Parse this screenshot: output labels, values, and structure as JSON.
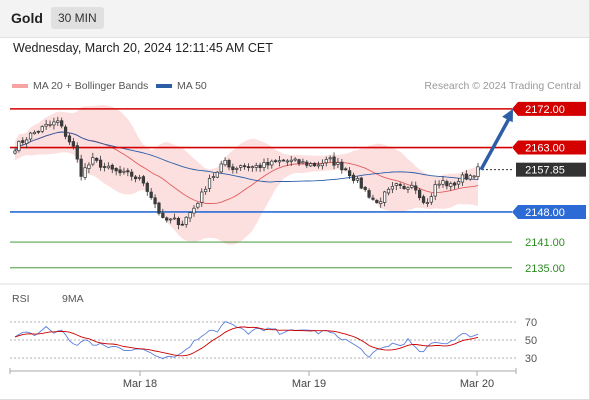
{
  "header": {
    "instrument": "Gold",
    "timeframe": "30 MIN"
  },
  "datetime": "Wednesday, March 20, 2024 12:11:45 AM CET",
  "legend": {
    "ma20_bb": "MA 20 + Bollinger Bands",
    "ma50": "MA 50"
  },
  "credit": "Research © 2024 Trading Central",
  "rsi_legend": {
    "rsi": "RSI",
    "ma": "9MA"
  },
  "colors": {
    "bb": "#f5a3a3",
    "ma20": "#e35d5d",
    "ma50": "#2c5ea8",
    "resistance": "#d40000",
    "support": "#2c6bd6",
    "target": "#2e8b22",
    "bull": "#3d3d3d",
    "bear": "#ffffff",
    "arrow": "#2c5ea8",
    "rsi": "#5b7fdd",
    "rsi_ma": "#cc0000",
    "last": "#333333"
  },
  "chart_data": [
    {
      "type": "candlestick",
      "price_range": [
        2131.7,
        2175
      ],
      "dates": [
        "Mar 18",
        "Mar 19",
        "Mar 20"
      ],
      "levels": [
        {
          "value": 2172.0,
          "label": "2172.00",
          "kind": "resistance"
        },
        {
          "value": 2163.0,
          "label": "2163.00",
          "kind": "resistance"
        },
        {
          "value": 2157.85,
          "label": "2157.85",
          "kind": "last"
        },
        {
          "value": 2148.0,
          "label": "2148.00",
          "kind": "support"
        },
        {
          "value": 2141.0,
          "label": "2141.00",
          "kind": "target"
        },
        {
          "value": 2135.0,
          "label": "2135.00",
          "kind": "target"
        }
      ],
      "projection": {
        "from": 2157.85,
        "to": 2172.0
      },
      "close_anchors": [
        [
          0,
          2163
        ],
        [
          4,
          2166
        ],
        [
          8,
          2168
        ],
        [
          11,
          2169
        ],
        [
          13,
          2166
        ],
        [
          15,
          2163
        ],
        [
          17,
          2157
        ],
        [
          20,
          2160
        ],
        [
          24,
          2158
        ],
        [
          27,
          2157
        ],
        [
          30,
          2156.5
        ],
        [
          33,
          2155
        ],
        [
          36,
          2150
        ],
        [
          38,
          2146
        ],
        [
          41,
          2146
        ],
        [
          43,
          2145.5
        ],
        [
          46,
          2149
        ],
        [
          48,
          2152
        ],
        [
          50,
          2156
        ],
        [
          52,
          2157
        ],
        [
          54,
          2160
        ],
        [
          56,
          2158
        ],
        [
          58,
          2159
        ],
        [
          61,
          2158.5
        ],
        [
          65,
          2159
        ],
        [
          69,
          2160
        ],
        [
          73,
          2159.5
        ],
        [
          77,
          2159
        ],
        [
          81,
          2160
        ],
        [
          85,
          2158
        ],
        [
          88,
          2155
        ],
        [
          90,
          2153
        ],
        [
          93,
          2150
        ],
        [
          95,
          2152
        ],
        [
          98,
          2154
        ],
        [
          100,
          2153
        ],
        [
          102,
          2155
        ],
        [
          104,
          2152
        ],
        [
          106,
          2150
        ],
        [
          108,
          2154
        ],
        [
          110,
          2155
        ],
        [
          112,
          2154
        ],
        [
          115,
          2156
        ],
        [
          117,
          2156.5
        ],
        [
          119,
          2157.85
        ]
      ]
    },
    {
      "type": "line",
      "name": "RSI",
      "yticks": [
        30,
        50,
        70
      ],
      "ylim": [
        20,
        80
      ],
      "rsi_anchors": [
        [
          0,
          52
        ],
        [
          3,
          60
        ],
        [
          5,
          55
        ],
        [
          8,
          64
        ],
        [
          10,
          58
        ],
        [
          12,
          62
        ],
        [
          14,
          48
        ],
        [
          16,
          45
        ],
        [
          18,
          50
        ],
        [
          20,
          44
        ],
        [
          22,
          46
        ],
        [
          24,
          41
        ],
        [
          26,
          44
        ],
        [
          28,
          40
        ],
        [
          30,
          38
        ],
        [
          33,
          40
        ],
        [
          36,
          34
        ],
        [
          38,
          31
        ],
        [
          40,
          32
        ],
        [
          42,
          33
        ],
        [
          44,
          40
        ],
        [
          46,
          48
        ],
        [
          48,
          55
        ],
        [
          50,
          62
        ],
        [
          52,
          60
        ],
        [
          54,
          70
        ],
        [
          56,
          66
        ],
        [
          58,
          62
        ],
        [
          60,
          58
        ],
        [
          62,
          62
        ],
        [
          64,
          60
        ],
        [
          66,
          63
        ],
        [
          68,
          58
        ],
        [
          70,
          61
        ],
        [
          72,
          59
        ],
        [
          75,
          62
        ],
        [
          78,
          58
        ],
        [
          80,
          60
        ],
        [
          82,
          56
        ],
        [
          84,
          52
        ],
        [
          86,
          48
        ],
        [
          88,
          42
        ],
        [
          90,
          36
        ],
        [
          91,
          30
        ],
        [
          93,
          38
        ],
        [
          95,
          42
        ],
        [
          97,
          46
        ],
        [
          99,
          44
        ],
        [
          101,
          50
        ],
        [
          103,
          40
        ],
        [
          105,
          36
        ],
        [
          107,
          46
        ],
        [
          109,
          48
        ],
        [
          111,
          46
        ],
        [
          113,
          52
        ],
        [
          115,
          56
        ],
        [
          117,
          55
        ],
        [
          119,
          56
        ]
      ]
    }
  ]
}
